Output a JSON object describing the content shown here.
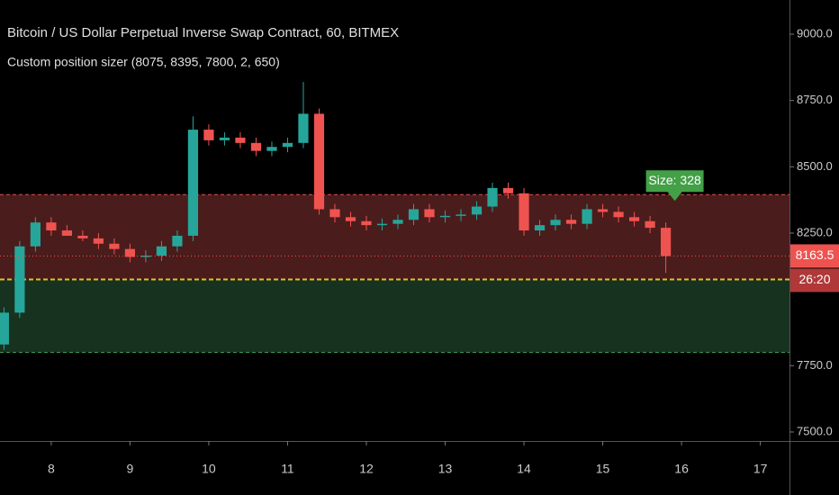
{
  "chart_data": {
    "type": "candlestick",
    "title": "Bitcoin / US Dollar Perpetual Inverse Swap Contract, 60, BITMEX",
    "subtitle": "Custom position sizer (8075, 8395, 7800, 2, 650)",
    "x": [
      7.4,
      7.6,
      7.8,
      8.0,
      8.2,
      8.4,
      8.6,
      8.8,
      9.0,
      9.2,
      9.4,
      9.6,
      9.8,
      10.0,
      10.2,
      10.4,
      10.6,
      10.8,
      11.0,
      11.2,
      11.4,
      11.6,
      11.8,
      12.0,
      12.2,
      12.4,
      12.6,
      12.8,
      13.0,
      13.2,
      13.4,
      13.6,
      13.8,
      14.0,
      14.2,
      14.4,
      14.6,
      14.8,
      15.0,
      15.2,
      15.4,
      15.6,
      15.8
    ],
    "open": [
      7830,
      7950,
      8200,
      8290,
      8260,
      8240,
      8230,
      8210,
      8190,
      8160,
      8165,
      8200,
      8240,
      8640,
      8600,
      8610,
      8590,
      8560,
      8575,
      8590,
      8700,
      8340,
      8310,
      8295,
      8280,
      8285,
      8300,
      8340,
      8310,
      8315,
      8320,
      8350,
      8420,
      8400,
      8260,
      8280,
      8300,
      8285,
      8340,
      8330,
      8310,
      8295,
      8270
    ],
    "high": [
      7970,
      8220,
      8310,
      8310,
      8280,
      8260,
      8250,
      8230,
      8210,
      8185,
      8220,
      8260,
      8690,
      8660,
      8630,
      8630,
      8610,
      8595,
      8610,
      8820,
      8720,
      8360,
      8330,
      8315,
      8305,
      8320,
      8360,
      8360,
      8335,
      8340,
      8370,
      8440,
      8440,
      8420,
      8300,
      8320,
      8320,
      8360,
      8360,
      8350,
      8330,
      8315,
      8290
    ],
    "low": [
      7810,
      7930,
      8180,
      8240,
      8240,
      8220,
      8190,
      8170,
      8140,
      8140,
      8145,
      8180,
      8220,
      8580,
      8580,
      8570,
      8540,
      8540,
      8555,
      8570,
      8320,
      8290,
      8275,
      8260,
      8260,
      8265,
      8280,
      8290,
      8290,
      8295,
      8300,
      8330,
      8380,
      8240,
      8240,
      8260,
      8265,
      8265,
      8310,
      8290,
      8275,
      8250,
      8100
    ],
    "close": [
      7950,
      8200,
      8290,
      8260,
      8240,
      8230,
      8210,
      8190,
      8160,
      8165,
      8200,
      8240,
      8640,
      8600,
      8610,
      8590,
      8560,
      8575,
      8590,
      8700,
      8340,
      8310,
      8295,
      8280,
      8285,
      8300,
      8340,
      8310,
      8315,
      8320,
      8350,
      8420,
      8400,
      8260,
      8280,
      8300,
      8285,
      8340,
      8330,
      8310,
      8295,
      8270,
      8163.5
    ],
    "up_color": "#26a69a",
    "down_color": "#ef5350",
    "xlim": [
      7.35,
      17.37
    ],
    "xticks": [
      8,
      9,
      10,
      11,
      12,
      13,
      14,
      15,
      16,
      17
    ],
    "ylim": [
      7466,
      9129
    ],
    "yticks": [
      {
        "value": 7500,
        "label": "7500.0"
      },
      {
        "value": 7750,
        "label": "7750.0"
      },
      {
        "value": 8250,
        "label": "8250.0"
      },
      {
        "value": 8500,
        "label": "8500.0"
      },
      {
        "value": 8750,
        "label": "8750.0"
      },
      {
        "value": 9000,
        "label": "9000.0"
      }
    ],
    "levels": {
      "upper": 8395,
      "entry": 8075,
      "lower": 7800
    },
    "last_price": 8163.5,
    "countdown": "26:20",
    "size_label": "Size: 328"
  }
}
